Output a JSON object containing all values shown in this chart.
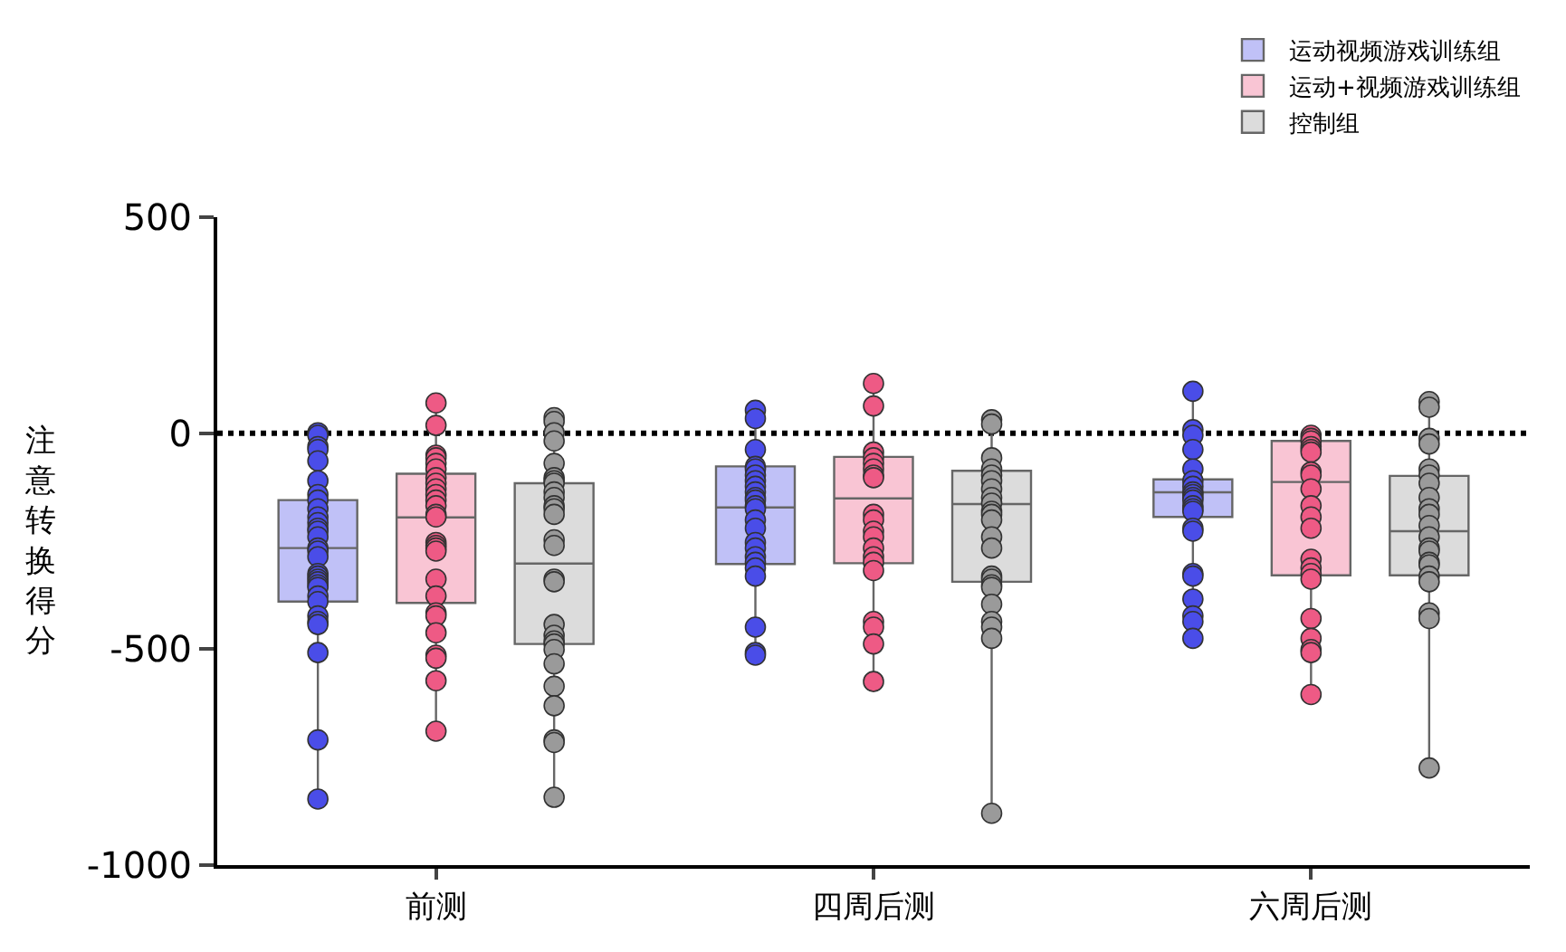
{
  "chart_data": {
    "type": "box",
    "ylabel": "注意转换得分",
    "categories": [
      "前测",
      "四周后测",
      "六周后测"
    ],
    "ylim": [
      -1000,
      500
    ],
    "yticks": [
      -1000,
      -500,
      0,
      500
    ],
    "grid": false,
    "legend": "top right",
    "marker": "circle",
    "ref_lines": [
      {
        "axis": "y",
        "value": 0,
        "color": "#000000",
        "line_style": "dotted"
      }
    ],
    "series": [
      {
        "type": "box",
        "name": "运动视频游戏训练组",
        "color": "#4a4de8",
        "boxes": [
          {
            "low": -845,
            "q1": -390,
            "median": -266,
            "q3": -155,
            "high": 0
          },
          {
            "low": -513,
            "q1": -303,
            "median": -172,
            "q3": -77,
            "high": 53
          },
          {
            "low": -475,
            "q1": -194,
            "median": -137,
            "q3": -107,
            "high": 97
          }
        ]
      },
      {
        "type": "box",
        "name": "运动+视频游戏训练组",
        "color": "#ee5a85",
        "boxes": [
          {
            "low": -690,
            "q1": -393,
            "median": -195,
            "q3": -94,
            "high": 70
          },
          {
            "low": -575,
            "q1": -301,
            "median": -151,
            "q3": -55,
            "high": 115
          },
          {
            "low": -605,
            "q1": -329,
            "median": -113,
            "q3": -18,
            "high": -5
          }
        ]
      },
      {
        "type": "box",
        "name": "控制组",
        "color": "#9a9a9a",
        "boxes": [
          {
            "low": -843,
            "q1": -488,
            "median": -302,
            "q3": -116,
            "high": 36
          },
          {
            "low": -883,
            "q1": -344,
            "median": -164,
            "q3": -87,
            "high": 31
          },
          {
            "low": -775,
            "q1": -329,
            "median": -227,
            "q3": -99,
            "high": 73
          }
        ]
      },
      {
        "type": "scatter",
        "color": "#4a4de8",
        "x": [
          "前测",
          "前测",
          "前测",
          "前测",
          "前测",
          "前测",
          "前测",
          "前测",
          "前测",
          "前测",
          "前测",
          "前测",
          "前测",
          "前测",
          "前测",
          "前测",
          "前测",
          "前测",
          "前测",
          "前测",
          "前测",
          "前测",
          "前测",
          "前测",
          "前测",
          "前测",
          "前测",
          "前测",
          "前测",
          "前测",
          "前测",
          "四周后测",
          "四周后测",
          "四周后测",
          "四周后测",
          "四周后测",
          "四周后测",
          "四周后测",
          "四周后测",
          "四周后测",
          "四周后测",
          "四周后测",
          "四周后测",
          "四周后测",
          "四周后测",
          "四周后测",
          "四周后测",
          "四周后测",
          "四周后测",
          "四周后测",
          "四周后测",
          "四周后测",
          "四周后测",
          "四周后测",
          "四周后测",
          "六周后测",
          "六周后测",
          "六周后测",
          "六周后测",
          "六周后测",
          "六周后测",
          "六周后测",
          "六周后测",
          "六周后测",
          "六周后测",
          "六周后测",
          "六周后测",
          "六周后测",
          "六周后测",
          "六周后测",
          "六周后测",
          "六周后测",
          "六周后测",
          "六周后测",
          "六周后测",
          "六周后测",
          "六周后测"
        ],
        "values": [
          1,
          -5,
          -31,
          -38,
          -64,
          -110,
          -142,
          -155,
          -175,
          -194,
          -207,
          -220,
          -227,
          -240,
          -266,
          -273,
          -286,
          -325,
          -331,
          -338,
          -344,
          -351,
          -357,
          -377,
          -390,
          -423,
          -436,
          -443,
          -508,
          -710,
          -847,
          53,
          34,
          -38,
          -77,
          -83,
          -97,
          -110,
          -123,
          -136,
          -149,
          -155,
          -168,
          -175,
          -201,
          -220,
          -253,
          -266,
          -286,
          -299,
          -312,
          -331,
          -449,
          -508,
          -514,
          97,
          8,
          -5,
          -38,
          -83,
          -110,
          -123,
          -136,
          -142,
          -149,
          -155,
          -168,
          -175,
          -181,
          -220,
          -227,
          -325,
          -331,
          -384,
          -423,
          -436,
          -475
        ]
      },
      {
        "type": "scatter",
        "color": "#ee5a85",
        "x": [
          "前测",
          "前测",
          "前测",
          "前测",
          "前测",
          "前测",
          "前测",
          "前测",
          "前测",
          "前测",
          "前测",
          "前测",
          "前测",
          "前测",
          "前测",
          "前测",
          "前测",
          "前测",
          "前测",
          "前测",
          "前测",
          "前测",
          "前测",
          "前测",
          "前测",
          "前测",
          "前测",
          "四周后测",
          "四周后测",
          "四周后测",
          "四周后测",
          "四周后测",
          "四周后测",
          "四周后测",
          "四周后测",
          "四周后测",
          "四周后测",
          "四周后测",
          "四周后测",
          "四周后测",
          "四周后测",
          "四周后测",
          "四周后测",
          "四周后测",
          "四周后测",
          "四周后测",
          "四周后测",
          "六周后测",
          "六周后测",
          "六周后测",
          "六周后测",
          "六周后测",
          "六周后测",
          "六周后测",
          "六周后测",
          "六周后测",
          "六周后测",
          "六周后测",
          "六周后测",
          "六周后测",
          "六周后测",
          "六周后测",
          "六周后测",
          "六周后测",
          "六周后测",
          "六周后测",
          "六周后测",
          "六周后测"
        ],
        "values": [
          70,
          18,
          -51,
          -57,
          -70,
          -83,
          -103,
          -116,
          -129,
          -142,
          -155,
          -168,
          -188,
          -194,
          -253,
          -260,
          -266,
          -273,
          -338,
          -377,
          -416,
          -423,
          -462,
          -514,
          -521,
          -573,
          -690,
          115,
          63,
          -44,
          -57,
          -70,
          -83,
          -97,
          -103,
          -188,
          -201,
          -227,
          -240,
          -266,
          -286,
          -299,
          -318,
          -436,
          -449,
          -488,
          -575,
          -5,
          -12,
          -18,
          -31,
          -38,
          -44,
          -90,
          -97,
          -129,
          -168,
          -194,
          -220,
          -292,
          -312,
          -325,
          -338,
          -429,
          -475,
          -501,
          -508,
          -605
        ]
      },
      {
        "type": "scatter",
        "color": "#9a9a9a",
        "x": [
          "前测",
          "前测",
          "前测",
          "前测",
          "前测",
          "前测",
          "前测",
          "前测",
          "前测",
          "前测",
          "前测",
          "前测",
          "前测",
          "前测",
          "前测",
          "前测",
          "前测",
          "前测",
          "前测",
          "前测",
          "前测",
          "前测",
          "前测",
          "前测",
          "前测",
          "前测",
          "前测",
          "前测",
          "四周后测",
          "四周后测",
          "四周后测",
          "四周后测",
          "四周后测",
          "四周后测",
          "四周后测",
          "四周后测",
          "四周后测",
          "四周后测",
          "四周后测",
          "四周后测",
          "四周后测",
          "四周后测",
          "四周后测",
          "四周后测",
          "四周后测",
          "四周后测",
          "四周后测",
          "四周后测",
          "四周后测",
          "四周后测",
          "四周后测",
          "六周后测",
          "六周后测",
          "六周后测",
          "六周后测",
          "六周后测",
          "六周后测",
          "六周后测",
          "六周后测",
          "六周后测",
          "六周后测",
          "六周后测",
          "六周后测",
          "六周后测",
          "六周后测",
          "六周后测",
          "六周后测",
          "六周后测",
          "六周后测",
          "六周后测",
          "六周后测",
          "六周后测"
        ],
        "values": [
          36,
          27,
          1,
          -18,
          -70,
          -103,
          -110,
          -116,
          -136,
          -149,
          -168,
          -175,
          -188,
          -247,
          -260,
          -338,
          -344,
          -443,
          -468,
          -481,
          -488,
          -501,
          -534,
          -586,
          -631,
          -710,
          -716,
          -843,
          31,
          21,
          -57,
          -83,
          -97,
          -110,
          -129,
          -149,
          -162,
          -181,
          -188,
          -201,
          -240,
          -266,
          -331,
          -338,
          -351,
          -357,
          -396,
          -436,
          -449,
          -475,
          -880,
          73,
          60,
          -12,
          -25,
          -83,
          -97,
          -116,
          -149,
          -175,
          -188,
          -214,
          -240,
          -266,
          -273,
          -299,
          -305,
          -331,
          -344,
          -416,
          -429,
          -775
        ]
      }
    ]
  }
}
